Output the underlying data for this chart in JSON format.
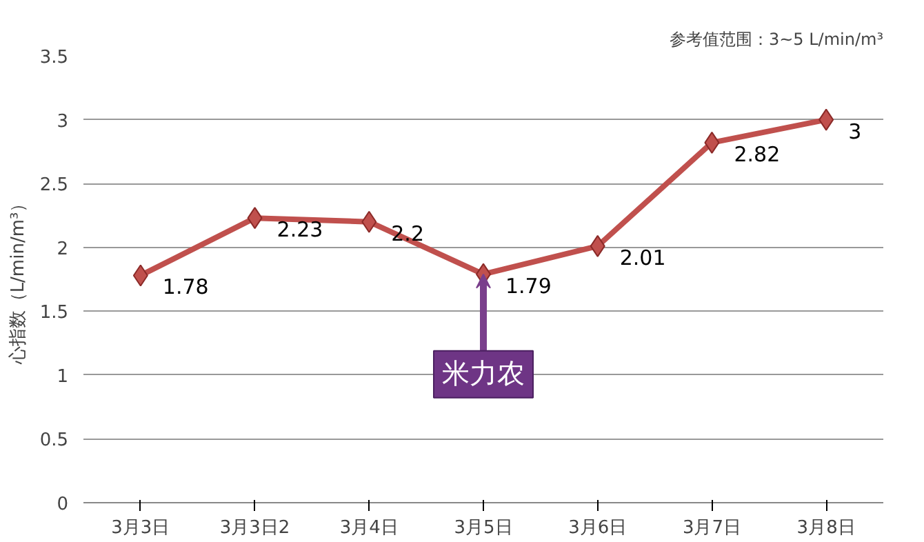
{
  "chart_data": {
    "type": "line",
    "ylabel": "心指数（L/min/m³）",
    "categories": [
      "3月3日",
      "3月3日2",
      "3月4日",
      "3月5日",
      "3月6日",
      "3月7日",
      "3月8日"
    ],
    "series": [
      {
        "color": "#c0504d",
        "values": [
          1.78,
          2.23,
          2.2,
          1.79,
          2.01,
          2.82,
          3
        ]
      }
    ],
    "ylim": [
      0,
      3.5
    ],
    "yticks": [
      0,
      0.5,
      1,
      1.5,
      2,
      2.5,
      3,
      3.5
    ],
    "grid": "y",
    "marker": "diamond",
    "line_style": "solid",
    "data_labels": true,
    "annotations": [
      {
        "text": "米力农",
        "x": "3月5日",
        "y": 1.79
      },
      "参考值范围：3~5 L/min/m³"
    ]
  }
}
